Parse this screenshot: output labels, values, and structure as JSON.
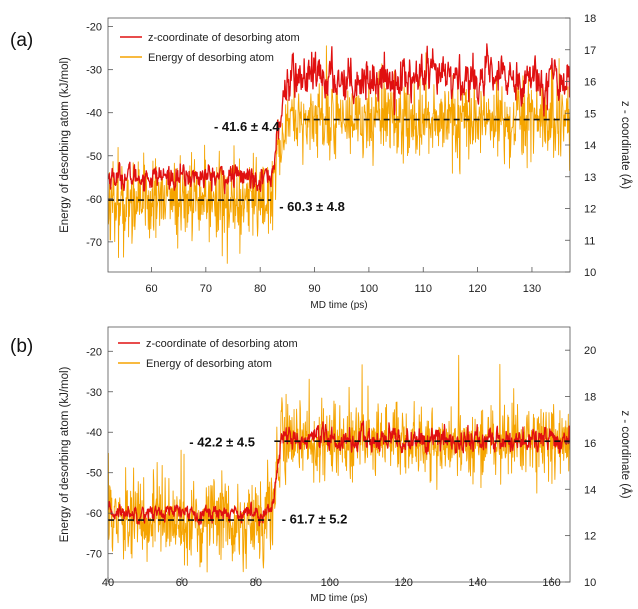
{
  "colors": {
    "z": "#e01010",
    "energy": "#f5a400",
    "mean": "#111111"
  },
  "chart_data": [
    {
      "type": "line",
      "panel_label": "(a)",
      "xlabel": "MD time (ps)",
      "ylabel_left": "Energy of desorbing atom (kJ/mol)",
      "ylabel_right": "z - coordinate (Å)",
      "xlim": [
        52,
        137
      ],
      "ylim_left": [
        -77,
        -18
      ],
      "ylim_right": [
        10,
        18
      ],
      "xticks": [
        "60",
        "70",
        "80",
        "90",
        "100",
        "110",
        "120",
        "130"
      ],
      "yticks_left": [
        "-70",
        "-60",
        "-50",
        "-40",
        "-30",
        "-20"
      ],
      "yticks_right": [
        "10",
        "11",
        "12",
        "13",
        "14",
        "15",
        "16",
        "17",
        "18"
      ],
      "transition_time": 82,
      "series": [
        {
          "name": "z-coordinate of desorbing atom",
          "axis": "right",
          "color": "#e01010",
          "before_mean": 13.0,
          "before_noise": 0.25,
          "after_mean": 16.1,
          "after_noise": 0.45,
          "max_spike": 0
        },
        {
          "name": "Energy of desorbing atom",
          "axis": "left",
          "color": "#f5a400",
          "before_mean": -60.3,
          "before_noise": 4.8,
          "after_mean": -41.6,
          "after_noise": 4.4,
          "max_spike": 17.5
        }
      ],
      "mean_lines": [
        {
          "x": [
            52,
            82
          ],
          "y": -60.3
        },
        {
          "x": [
            88,
            137
          ],
          "y": -41.6
        }
      ],
      "annotations": [
        {
          "text": "- 41.6 ± 4.4",
          "x": 71.5,
          "y": -44.2
        },
        {
          "text": "- 60.3 ± 4.8",
          "x": 83.5,
          "y": -62.8
        }
      ]
    },
    {
      "type": "line",
      "panel_label": "(b)",
      "xlabel": "MD time (ps)",
      "ylabel_left": "Energy of desorbing atom (kJ/mol)",
      "ylabel_right": "z - coordinate (Å)",
      "xlim": [
        40,
        165
      ],
      "ylim_left": [
        -77,
        -14
      ],
      "ylim_right": [
        10,
        21
      ],
      "xticks": [
        "40",
        "60",
        "80",
        "100",
        "120",
        "140",
        "160"
      ],
      "yticks_left": [
        "-70",
        "-60",
        "-50",
        "-40",
        "-30",
        "-20"
      ],
      "yticks_right": [
        "10",
        "12",
        "14",
        "16",
        "18",
        "20"
      ],
      "transition_time": 84,
      "series": [
        {
          "name": "z-coordinate of desorbing atom",
          "axis": "right",
          "color": "#e01010",
          "before_mean": 13.0,
          "before_noise": 0.22,
          "after_mean": 16.1,
          "after_noise": 0.35,
          "max_spike": 0
        },
        {
          "name": "Energy of desorbing atom",
          "axis": "left",
          "color": "#f5a400",
          "before_mean": -61.7,
          "before_noise": 5.2,
          "after_mean": -42.2,
          "after_noise": 4.5,
          "max_spike": 21.5
        }
      ],
      "mean_lines": [
        {
          "x": [
            40,
            84
          ],
          "y": -61.7
        },
        {
          "x": [
            85,
            165
          ],
          "y": -42.2
        }
      ],
      "annotations": [
        {
          "text": "- 42.2 ± 4.5",
          "x": 62,
          "y": -43.5
        },
        {
          "text": "- 61.7 ± 5.2",
          "x": 87,
          "y": -62.5
        }
      ]
    }
  ]
}
